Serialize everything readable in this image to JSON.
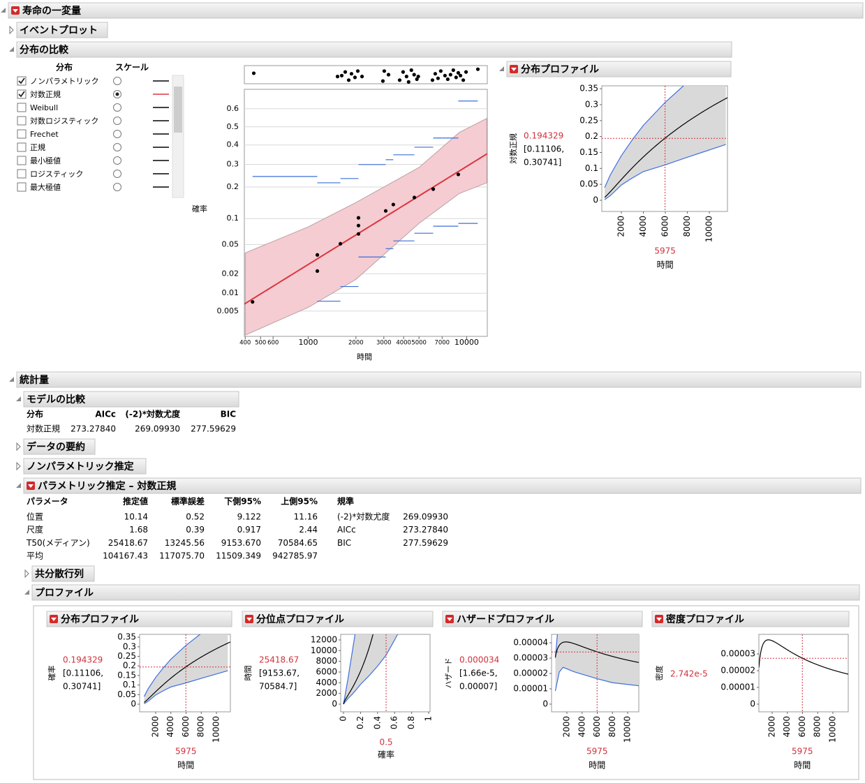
{
  "header": {
    "title": "寿命の一変量"
  },
  "event_plot": {
    "title": "イベントプロット"
  },
  "compare": {
    "title": "分布の比較",
    "list_headers": [
      "分布",
      "スケール"
    ],
    "selected_scale": 1,
    "distributions": [
      {
        "name": "ノンパラメトリック",
        "checked": true,
        "color": "#000000"
      },
      {
        "name": "対数正規",
        "checked": true,
        "color": "#d9373f"
      },
      {
        "name": "Weibull",
        "checked": false,
        "color": "#000000"
      },
      {
        "name": "対数ロジスティック",
        "checked": false,
        "color": "#000000"
      },
      {
        "name": "Frechet",
        "checked": false,
        "color": "#000000"
      },
      {
        "name": "正規",
        "checked": false,
        "color": "#000000"
      },
      {
        "name": "最小極値",
        "checked": false,
        "color": "#000000"
      },
      {
        "name": "ロジスティック",
        "checked": false,
        "color": "#000000"
      },
      {
        "name": "最大極値",
        "checked": false,
        "color": "#000000"
      }
    ],
    "prob_plot": {
      "type": "probability",
      "ylabel": "確率",
      "xlabel": "時間",
      "xlog": true,
      "grid": true,
      "xlim": [
        395,
        13500
      ],
      "ylim": [
        0.0017,
        0.7
      ],
      "xticks": [
        400,
        500,
        600,
        1000,
        2000,
        3000,
        4000,
        5000,
        7000,
        10000
      ],
      "yticks": [
        0.005,
        0.01,
        0.02,
        0.05,
        0.1,
        0.2,
        0.3,
        0.4,
        0.5,
        0.6
      ],
      "points": {
        "color": "#000000",
        "x": [
          445,
          1141,
          1141,
          1596,
          2075,
          2075,
          2075,
          3083,
          3444,
          4677,
          6150,
          8854
        ],
        "values": [
          0.0072,
          0.0367,
          0.0219,
          0.0511,
          0.0672,
          0.0838,
          0.1017,
          0.12,
          0.1387,
          0.1616,
          0.192,
          0.253
        ]
      },
      "fit_color": "#d9373f",
      "band": {
        "color": "#f5ccd2",
        "x": [
          400,
          1000,
          2000,
          5000,
          9000,
          13400
        ],
        "upper": [
          0.039,
          0.081,
          0.145,
          0.285,
          0.469,
          0.547
        ],
        "lower": [
          0.0018,
          0.0058,
          0.0165,
          0.0885,
          0.176,
          0.217
        ]
      },
      "np_color": "#3a6fd8",
      "np_upper": {
        "edges": [
          445,
          1141,
          1596,
          2075,
          3083,
          3444,
          4677,
          6150,
          8854,
          11750
        ],
        "values": [
          0.244,
          0.217,
          0.235,
          0.299,
          0.323,
          0.348,
          0.388,
          0.438,
          0.641
        ]
      },
      "np_lower": {
        "edges": [
          1141,
          1596,
          2075,
          3083,
          3444,
          4677,
          6150,
          8854,
          11750
        ],
        "values": [
          0.0074,
          0.0128,
          0.0344,
          0.0443,
          0.0554,
          0.0685,
          0.0824,
          0.0885
        ]
      },
      "events": {
        "x": [
          453,
          1531,
          1627,
          1712,
          1801,
          1875,
          1972,
          2055,
          2185,
          2959,
          3019,
          3211,
          3776,
          3970,
          4173,
          4301,
          4477,
          4660,
          4850,
          4949,
          6083,
          6334,
          6595,
          6867,
          7297,
          7598,
          7911,
          8237,
          8576,
          8854,
          9140,
          9519,
          9911,
          11770
        ],
        "jitter": [
          0.42,
          0.6,
          0.55,
          0.35,
          0.8,
          0.45,
          0.65,
          0.3,
          0.6,
          0.85,
          0.3,
          0.5,
          0.8,
          0.35,
          0.6,
          0.9,
          0.25,
          0.5,
          0.75,
          0.6,
          0.8,
          0.45,
          0.7,
          0.3,
          0.55,
          0.75,
          0.5,
          0.25,
          0.65,
          0.4,
          0.55,
          0.8,
          0.35,
          0.2
        ]
      }
    },
    "profiler": {
      "type": "cdf",
      "title": "分布プロファイル",
      "ylabel": "対数正規",
      "value": {
        "value": 0.194329,
        "label": "0.194329"
      },
      "ci": [
        "[0.11106,",
        "0.30741]"
      ],
      "x_value": 5975,
      "xlabel": "時間",
      "xlim": [
        220,
        11650
      ],
      "ylim": [
        -0.035,
        0.359
      ],
      "xticks": [
        2000,
        4000,
        6000,
        8000,
        10000
      ],
      "yticks": [
        0,
        0.05,
        0.1,
        0.15,
        0.2,
        0.25,
        0.3,
        0.35
      ],
      "band": {
        "x": [
          480,
          1000,
          2000,
          3000,
          4000,
          5975,
          8000,
          11500
        ],
        "upper": [
          0.04,
          0.08,
          0.14,
          0.19,
          0.235,
          0.307,
          0.37,
          0.45
        ],
        "lower": [
          0.002,
          0.015,
          0.048,
          0.07,
          0.09,
          0.111,
          0.135,
          0.175
        ]
      }
    }
  },
  "statistics": {
    "title": "統計量",
    "model_comparison": {
      "title": "モデルの比較",
      "columns": [
        "分布",
        "AICc",
        "(-2)*対数尤度",
        "BIC"
      ],
      "rows": [
        [
          "対数正規",
          "273.27840",
          "269.09930",
          "277.59629"
        ]
      ]
    },
    "data_summary": {
      "title": "データの要約"
    },
    "nonparametric": {
      "title": "ノンパラメトリック推定"
    },
    "parametric": {
      "title": "パラメトリック推定 – 対数正規",
      "columns": [
        "パラメータ",
        "推定値",
        "標準誤差",
        "下側95%",
        "上側95%"
      ],
      "rows": [
        [
          "位置",
          "10.14",
          "0.52",
          "9.122",
          "11.16"
        ],
        [
          "尺度",
          "1.68",
          "0.39",
          "0.917",
          "2.44"
        ],
        [
          "T50(メディアン)",
          "25418.67",
          "13245.56",
          "9153.670",
          "70584.65"
        ],
        [
          "平均",
          "104167.43",
          "117075.70",
          "11509.349",
          "942785.97"
        ]
      ],
      "criteria_title": "規準",
      "criteria": [
        [
          "(-2)*対数尤度",
          "269.09930"
        ],
        [
          "AICc",
          "273.27840"
        ],
        [
          "BIC",
          "277.59629"
        ]
      ]
    },
    "covariance": {
      "title": "共分散行列"
    }
  },
  "profile_colors": {
    "curve": "#000000",
    "band": "#d9d9d9",
    "edge": "#3d6fe0",
    "cursor": "#d0313b"
  },
  "profiles": {
    "title": "プロファイル",
    "panels": [
      {
        "type": "cdf",
        "title": "分布プロファイル",
        "ylabel": "確率",
        "value": {
          "value": 0.194329,
          "label": "0.194329"
        },
        "ci": [
          "[0.11106,",
          "0.30741]"
        ],
        "x_value": 5975,
        "xlabel": "時間",
        "xlim": [
          -115,
          11840
        ],
        "ylim": [
          -0.04,
          0.365
        ],
        "xticks": [
          2000,
          4000,
          6000,
          8000,
          10000
        ],
        "yticks": [
          0,
          0.05,
          0.1,
          0.15,
          0.2,
          0.25,
          0.3,
          0.35
        ],
        "band": {
          "x": [
            480,
            1000,
            2000,
            3000,
            4000,
            5975,
            8000,
            11500
          ],
          "upper": [
            0.04,
            0.08,
            0.14,
            0.19,
            0.235,
            0.307,
            0.37,
            0.45
          ],
          "lower": [
            0.002,
            0.015,
            0.048,
            0.07,
            0.09,
            0.111,
            0.135,
            0.175
          ]
        }
      },
      {
        "type": "quantile",
        "title": "分位点プロファイル",
        "ylabel": "時間",
        "value": {
          "value": 25418.67,
          "label": "25418.67"
        },
        "ci": [
          "[9153.67,",
          "70584.7]"
        ],
        "x_value": 0.5,
        "xlabel": "確率",
        "xlim": [
          -0.033,
          1.016
        ],
        "ylim": [
          -1435,
          13040
        ],
        "xticks": [
          0,
          0.2,
          0.4,
          0.6,
          0.8,
          1
        ],
        "yticks": [
          0,
          2000,
          4000,
          6000,
          8000,
          10000,
          12000
        ],
        "band": {
          "x": [
            0,
            0.05,
            0.1,
            0.15,
            0.2,
            0.3,
            0.4,
            0.5,
            0.6,
            0.7
          ],
          "upper": [
            0,
            4500,
            9500,
            14500,
            19000,
            30000,
            45000,
            70585,
            100000,
            150000
          ],
          "lower": [
            0,
            1000,
            1800,
            2700,
            3700,
            5300,
            7100,
            9154,
            12000,
            15000
          ]
        }
      },
      {
        "type": "hazard",
        "title": "ハザードプロファイル",
        "ylabel": "ハザード",
        "value": {
          "value": 3.4e-05,
          "label": "0.000034"
        },
        "ci": [
          "[1.66e-5,",
          "0.00007]"
        ],
        "x_value": 5975,
        "xlabel": "時間",
        "xlim": [
          -23,
          11471
        ],
        "ylim": [
          -5e-06,
          4.55e-05
        ],
        "xticks": [
          2000,
          4000,
          6000,
          8000,
          10000
        ],
        "yticks": [
          0,
          1e-05,
          2e-05,
          3e-05,
          4e-05
        ],
        "band": {
          "x": [
            480,
            1000,
            1500,
            3000,
            5975,
            8000,
            11500
          ],
          "upper": [
            3e-05,
            6e-05,
            7e-05,
            7e-05,
            7e-05,
            7e-05,
            7e-05
          ],
          "lower": [
            8.6e-06,
            2.1e-05,
            2.4e-05,
            2.1e-05,
            1.66e-05,
            1.4e-05,
            1.2e-05
          ]
        }
      },
      {
        "type": "density",
        "title": "密度プロファイル",
        "ylabel": "密度",
        "value": {
          "value": 2.742e-05,
          "label": "2.742e-5"
        },
        "x_value": 5975,
        "xlabel": "時間",
        "xlim": [
          253,
          12023
        ],
        "ylim": [
          -4.6e-06,
          4.17e-05
        ],
        "xticks": [
          2000,
          4000,
          6000,
          8000,
          10000
        ],
        "yticks": [
          0,
          1e-05,
          2e-05,
          3e-05
        ]
      }
    ]
  }
}
